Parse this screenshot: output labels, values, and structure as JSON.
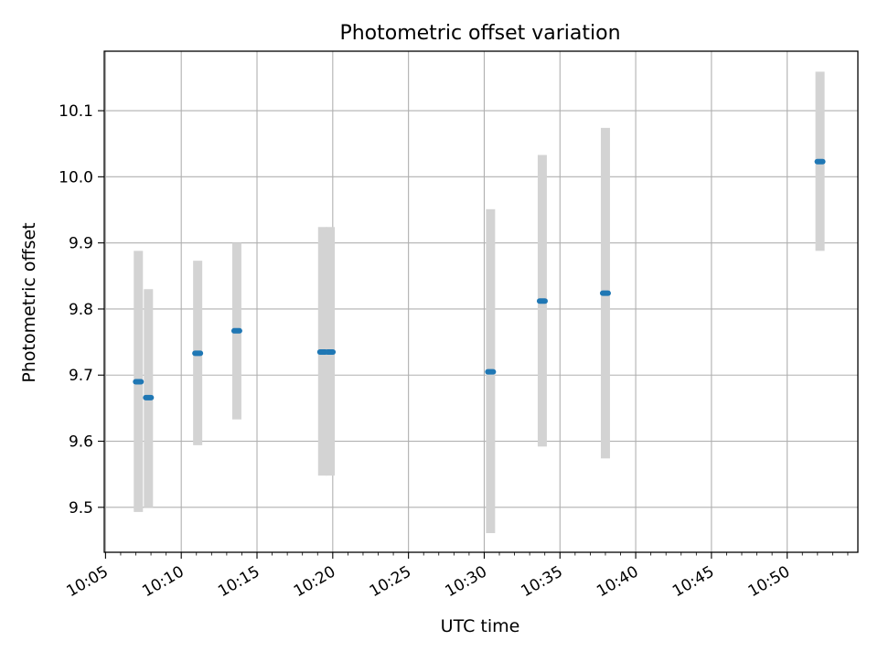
{
  "chart_data": {
    "type": "scatter",
    "title": "Photometric offset variation",
    "xlabel": "UTC time",
    "ylabel": "Photometric offset",
    "x_ticks": [
      "10:05",
      "10:10",
      "10:15",
      "10:20",
      "10:25",
      "10:30",
      "10:35",
      "10:40",
      "10:45",
      "10:50"
    ],
    "y_ticks": [
      "9.5",
      "9.6",
      "9.7",
      "9.8",
      "9.9",
      "10.0",
      "10.1"
    ],
    "xlim": [
      "10:04:55",
      "10:54:40"
    ],
    "ylim": [
      9.432,
      10.19
    ],
    "grid": true,
    "points": [
      {
        "x": "10:07:10",
        "y": 9.69,
        "err_low": 9.493,
        "err_high": 9.888
      },
      {
        "x": "10:07:50",
        "y": 9.666,
        "err_low": 9.5,
        "err_high": 9.83
      },
      {
        "x": "10:11:05",
        "y": 9.733,
        "err_low": 9.594,
        "err_high": 9.873
      },
      {
        "x": "10:13:40",
        "y": 9.767,
        "err_low": 9.633,
        "err_high": 9.9
      },
      {
        "x": "10:19:20",
        "y": 9.735,
        "err_low": 9.548,
        "err_high": 9.924
      },
      {
        "x": "10:19:50",
        "y": 9.735,
        "err_low": 9.548,
        "err_high": 9.924
      },
      {
        "x": "10:30:25",
        "y": 9.705,
        "err_low": 9.461,
        "err_high": 9.951
      },
      {
        "x": "10:33:50",
        "y": 9.812,
        "err_low": 9.592,
        "err_high": 10.033
      },
      {
        "x": "10:38:00",
        "y": 9.824,
        "err_low": 9.574,
        "err_high": 10.074
      },
      {
        "x": "10:52:10",
        "y": 10.023,
        "err_low": 9.888,
        "err_high": 10.159
      }
    ],
    "colors": {
      "marker": "#1f77b4",
      "errorbar": "#d3d3d3",
      "grid": "#b0b0b0"
    }
  }
}
